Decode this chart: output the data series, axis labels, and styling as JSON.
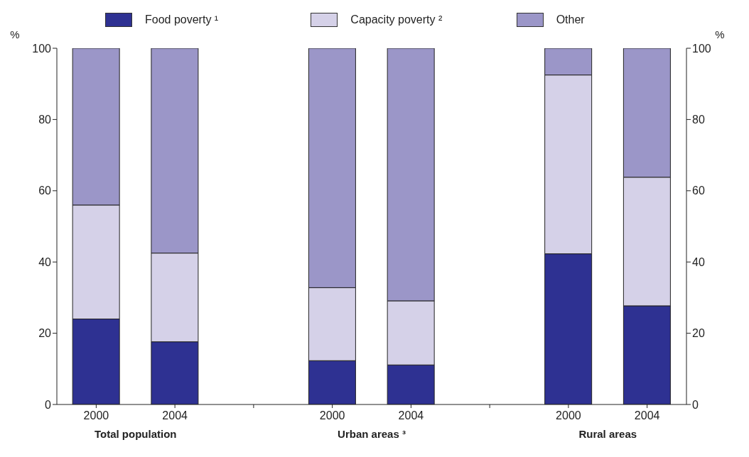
{
  "chart_data": {
    "type": "bar",
    "stacked": true,
    "categories": [
      "2000",
      "2004",
      null,
      "2000",
      "2004",
      null,
      "2000",
      "2004"
    ],
    "series": [
      {
        "name": "Food poverty ¹",
        "color": "#2e3192",
        "values": [
          24,
          17.6,
          null,
          12.3,
          11.1,
          null,
          42.3,
          27.7
        ]
      },
      {
        "name": "Capacity poverty ²",
        "color": "#d5d1e8",
        "values": [
          32,
          24.9,
          null,
          20.5,
          18.0,
          null,
          50.2,
          36.1
        ]
      },
      {
        "name": "Other",
        "color": "#9b96c8",
        "values": [
          44,
          57.5,
          null,
          67.2,
          70.9,
          null,
          7.5,
          36.2
        ]
      }
    ],
    "annotations": [
      "Total population",
      "Urban areas ³",
      "Rural areas"
    ],
    "ylabel": "%",
    "y2label": "%",
    "ylim": [
      0,
      100
    ],
    "yticks": [
      0,
      20,
      40,
      60,
      80,
      100
    ],
    "y2lim": [
      0,
      100
    ],
    "y2ticks": [
      0,
      20,
      40,
      60,
      80,
      100
    ],
    "legend": "top",
    "grid": false
  }
}
